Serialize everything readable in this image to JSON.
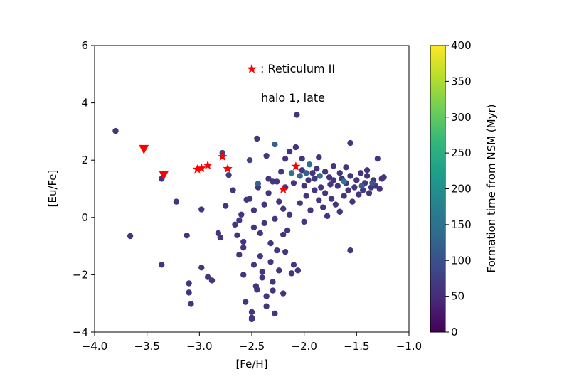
{
  "chart_data": {
    "type": "scatter",
    "xlabel": "[Fe/H]",
    "ylabel": "[Eu/Fe]",
    "xlim": [
      -4.0,
      -1.0
    ],
    "ylim": [
      -4,
      6
    ],
    "xticks": [
      "−4.0",
      "−3.5",
      "−3.0",
      "−2.5",
      "−2.0",
      "−1.5",
      "−1.0"
    ],
    "xtick_values": [
      -4.0,
      -3.5,
      -3.0,
      -2.5,
      -2.0,
      -1.5,
      -1.0
    ],
    "yticks": [
      "−4",
      "−2",
      "0",
      "2",
      "4",
      "6"
    ],
    "ytick_values": [
      -4,
      -2,
      0,
      2,
      4,
      6
    ],
    "grid": false,
    "annotations": {
      "legend_text": ": Reticulum II",
      "panel_text": "halo 1, late"
    },
    "colorbar": {
      "label": "Formation time from NSM (Myr)",
      "range": [
        0,
        400
      ],
      "ticks": [
        "0",
        "50",
        "100",
        "150",
        "200",
        "250",
        "300",
        "350",
        "400"
      ],
      "tick_values": [
        0,
        50,
        100,
        150,
        200,
        250,
        300,
        350,
        400
      ],
      "colormap": "viridis",
      "colors": [
        "#440154",
        "#482878",
        "#3e4989",
        "#31688e",
        "#26828e",
        "#1f9e89",
        "#35b779",
        "#6ece58",
        "#b5de2b",
        "#fde725"
      ]
    },
    "series": [
      {
        "name": "Reticulum II",
        "marker": "star",
        "color": "#ff0000",
        "points": [
          [
            -3.02,
            1.68
          ],
          [
            -2.98,
            1.72
          ],
          [
            -2.92,
            1.82
          ],
          [
            -2.78,
            2.12
          ],
          [
            -2.73,
            1.7
          ],
          [
            -2.08,
            1.78
          ],
          [
            -2.2,
            0.98
          ]
        ]
      },
      {
        "marker": "triangle-down",
        "color": "#ff0000",
        "points": [
          [
            -3.53,
            2.38
          ],
          [
            -3.34,
            1.48
          ]
        ]
      },
      {
        "marker": "circle",
        "colormapped": true,
        "points": [
          [
            -3.8,
            3.02,
            60
          ],
          [
            -3.66,
            -0.65,
            60
          ],
          [
            -3.36,
            -1.65,
            60
          ],
          [
            -3.36,
            1.35,
            60
          ],
          [
            -3.22,
            0.55,
            60
          ],
          [
            -3.12,
            -0.63,
            60
          ],
          [
            -3.1,
            -2.3,
            60
          ],
          [
            -3.1,
            -2.62,
            60
          ],
          [
            -3.08,
            -3.02,
            60
          ],
          [
            -2.98,
            0.28,
            60
          ],
          [
            -2.98,
            -1.75,
            60
          ],
          [
            -2.92,
            -2.08,
            60
          ],
          [
            -2.88,
            -2.2,
            60
          ],
          [
            -2.82,
            -0.55,
            60
          ],
          [
            -2.8,
            -0.7,
            60
          ],
          [
            -2.78,
            2.25,
            80
          ],
          [
            -2.75,
            0.4,
            60
          ],
          [
            -2.72,
            1.48,
            70
          ],
          [
            -2.68,
            0.95,
            60
          ],
          [
            -2.66,
            -0.25,
            60
          ],
          [
            -2.64,
            -0.62,
            60
          ],
          [
            -2.62,
            -0.1,
            60
          ],
          [
            -2.62,
            -1.3,
            60
          ],
          [
            -2.6,
            0.1,
            60
          ],
          [
            -2.58,
            -0.85,
            60
          ],
          [
            -2.58,
            -1.05,
            60
          ],
          [
            -2.58,
            -2.0,
            60
          ],
          [
            -2.56,
            -2.95,
            60
          ],
          [
            -2.55,
            0.62,
            60
          ],
          [
            -2.52,
            0.65,
            60
          ],
          [
            -2.52,
            2.0,
            80
          ],
          [
            -2.5,
            -3.3,
            60
          ],
          [
            -2.5,
            -3.5,
            60
          ],
          [
            -2.5,
            -3.55,
            60
          ],
          [
            -2.48,
            0.25,
            60
          ],
          [
            -2.48,
            -0.35,
            60
          ],
          [
            -2.48,
            -1.65,
            60
          ],
          [
            -2.46,
            -2.4,
            60
          ],
          [
            -2.45,
            -2.52,
            60
          ],
          [
            -2.45,
            2.75,
            60
          ],
          [
            -2.44,
            1.05,
            60
          ],
          [
            -2.42,
            -0.55,
            60
          ],
          [
            -2.42,
            -1.35,
            60
          ],
          [
            -2.4,
            -1.9,
            60
          ],
          [
            -2.4,
            -2.1,
            60
          ],
          [
            -2.38,
            0.45,
            60
          ],
          [
            -2.38,
            -0.2,
            60
          ],
          [
            -2.36,
            2.15,
            60
          ],
          [
            -2.36,
            -2.75,
            60
          ],
          [
            -2.36,
            -3.1,
            60
          ],
          [
            -2.34,
            1.35,
            60
          ],
          [
            -2.34,
            0.85,
            60
          ],
          [
            -2.32,
            -0.9,
            60
          ],
          [
            -2.32,
            -1.55,
            60
          ],
          [
            -2.3,
            -2.25,
            60
          ],
          [
            -2.3,
            -2.55,
            60
          ],
          [
            -2.28,
            2.55,
            120
          ],
          [
            -2.28,
            -0.05,
            60
          ],
          [
            -2.28,
            -3.35,
            60
          ],
          [
            -2.26,
            1.25,
            60
          ],
          [
            -2.26,
            -1.15,
            60
          ],
          [
            -2.24,
            0.55,
            60
          ],
          [
            -2.24,
            -1.85,
            60
          ],
          [
            -2.22,
            1.6,
            60
          ],
          [
            -2.2,
            0.3,
            60
          ],
          [
            -2.2,
            -0.6,
            60
          ],
          [
            -2.2,
            -2.65,
            60
          ],
          [
            -2.18,
            1.05,
            60
          ],
          [
            -2.18,
            2.05,
            60
          ],
          [
            -2.18,
            -1.2,
            60
          ],
          [
            -2.16,
            -0.45,
            60
          ],
          [
            -2.14,
            0.1,
            60
          ],
          [
            -2.14,
            2.3,
            60
          ],
          [
            -2.12,
            1.55,
            150
          ],
          [
            -2.12,
            -1.95,
            60
          ],
          [
            -2.1,
            1.2,
            60
          ],
          [
            -2.1,
            -1.65,
            60
          ],
          [
            -2.08,
            2.45,
            60
          ],
          [
            -2.06,
            -1.85,
            60
          ],
          [
            -2.04,
            1.45,
            130
          ],
          [
            -2.04,
            0.5,
            60
          ],
          [
            -2.02,
            1.65,
            60
          ],
          [
            -2.02,
            2.05,
            60
          ],
          [
            -2.0,
            1.1,
            60
          ],
          [
            -2.0,
            -0.15,
            60
          ],
          [
            -1.98,
            1.55,
            120
          ],
          [
            -1.98,
            0.75,
            60
          ],
          [
            -1.96,
            1.3,
            60
          ],
          [
            -1.95,
            1.85,
            140
          ],
          [
            -1.94,
            0.25,
            60
          ],
          [
            -1.92,
            1.55,
            60
          ],
          [
            -1.9,
            1.35,
            60
          ],
          [
            -1.9,
            0.95,
            60
          ],
          [
            -1.88,
            1.7,
            60
          ],
          [
            -1.86,
            0.6,
            60
          ],
          [
            -1.86,
            2.1,
            60
          ],
          [
            -1.85,
            1.45,
            150
          ],
          [
            -1.84,
            1.05,
            60
          ],
          [
            -1.82,
            0.35,
            60
          ],
          [
            -1.8,
            1.6,
            60
          ],
          [
            -1.8,
            0.85,
            60
          ],
          [
            -1.78,
            0.05,
            60
          ],
          [
            -1.76,
            1.4,
            60
          ],
          [
            -1.75,
            1.15,
            60
          ],
          [
            -1.74,
            0.65,
            60
          ],
          [
            -1.72,
            1.3,
            60
          ],
          [
            -1.72,
            1.8,
            60
          ],
          [
            -1.7,
            0.45,
            60
          ],
          [
            -1.68,
            1.1,
            60
          ],
          [
            -1.66,
            1.55,
            60
          ],
          [
            -1.66,
            0.2,
            60
          ],
          [
            -1.64,
            1.35,
            60
          ],
          [
            -1.62,
            0.75,
            60
          ],
          [
            -1.6,
            1.2,
            60
          ],
          [
            -1.6,
            1.75,
            60
          ],
          [
            -1.58,
            0.95,
            60
          ],
          [
            -1.56,
            -1.15,
            60
          ],
          [
            -1.56,
            1.45,
            60
          ],
          [
            -1.54,
            0.55,
            60
          ],
          [
            -1.52,
            1.05,
            60
          ],
          [
            -1.5,
            1.3,
            60
          ],
          [
            -1.48,
            0.8,
            60
          ],
          [
            -1.46,
            1.55,
            60
          ],
          [
            -1.44,
            0.95,
            60
          ],
          [
            -1.42,
            1.2,
            60
          ],
          [
            -1.4,
            1.45,
            60
          ],
          [
            -1.4,
            1.65,
            60
          ],
          [
            -1.38,
            0.85,
            60
          ],
          [
            -1.36,
            1.05,
            60
          ],
          [
            -1.34,
            1.3,
            60
          ],
          [
            -1.32,
            1.1,
            60
          ],
          [
            -1.3,
            2.05,
            60
          ],
          [
            -1.28,
            1.0,
            60
          ],
          [
            -1.26,
            1.35,
            60
          ],
          [
            -1.24,
            1.4,
            60
          ],
          [
            -1.56,
            2.6,
            60
          ],
          [
            -2.07,
            3.58,
            60
          ],
          [
            -2.44,
            1.18,
            130
          ],
          [
            -2.3,
            1.25,
            60
          ],
          [
            -1.45,
            1.1,
            120
          ],
          [
            -1.35,
            1.2,
            110
          ],
          [
            -1.62,
            1.25,
            160
          ]
        ]
      }
    ]
  }
}
